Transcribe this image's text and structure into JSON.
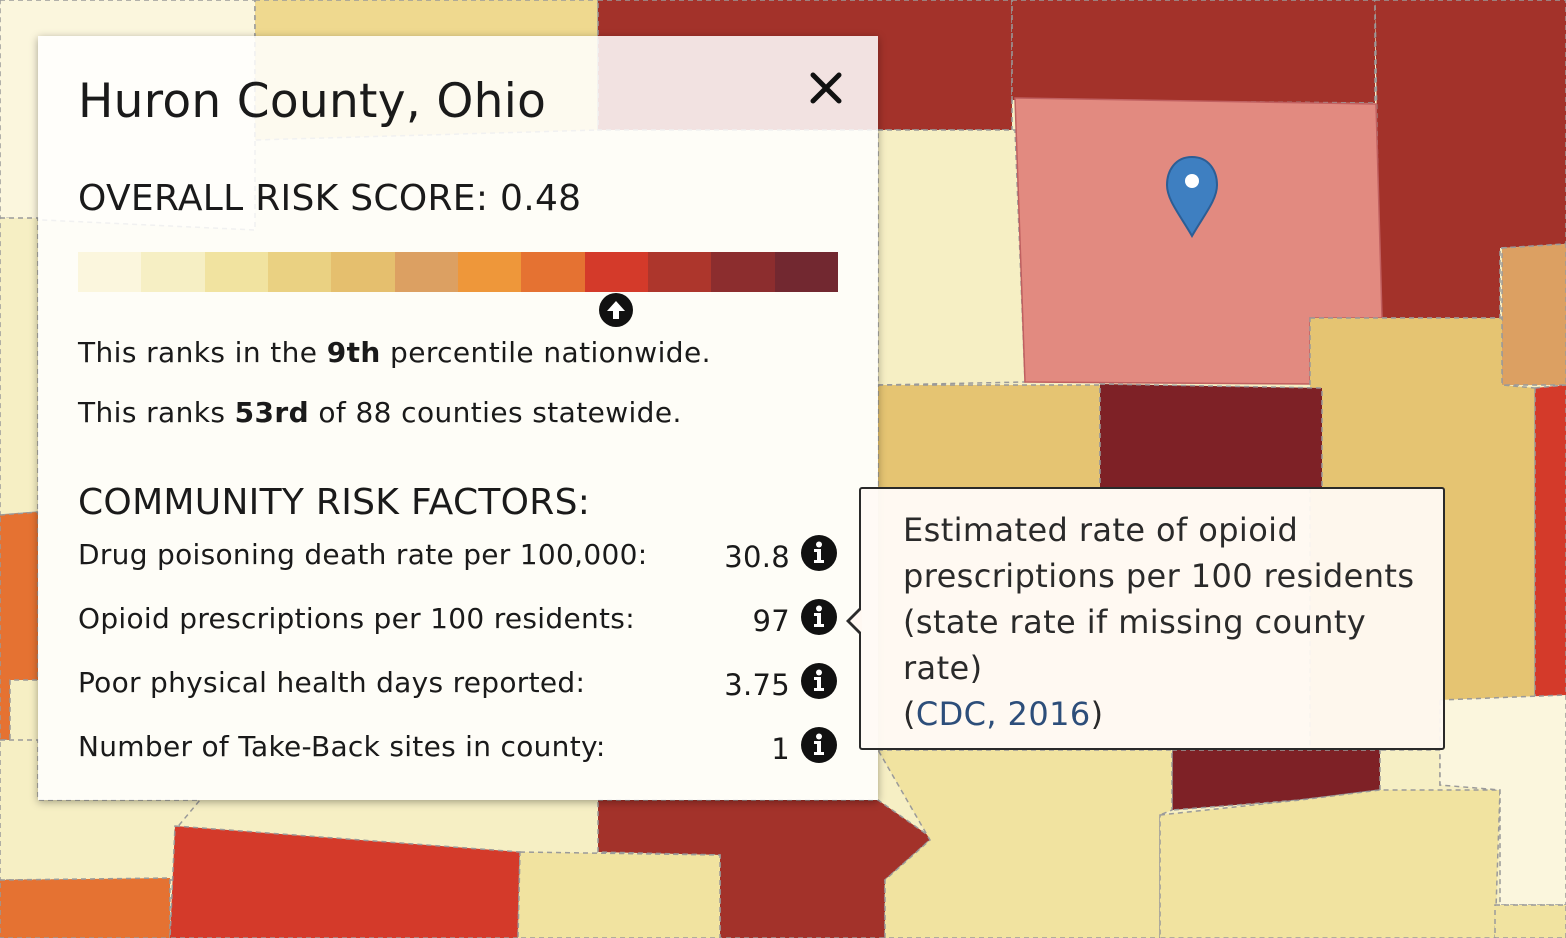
{
  "county_title": "Huron County, Ohio",
  "overall_risk_score": "OVERALL RISK SCORE: 0.48",
  "score_value": 0.48,
  "scale_colors": [
    "#fbf6dd",
    "#f6efc4",
    "#f1e3a0",
    "#ead182",
    "#e5bf6e",
    "#dca062",
    "#ee973a",
    "#e57232",
    "#d43a2a",
    "#ad362c",
    "#8c2d2e",
    "#722830"
  ],
  "rank_national": {
    "prefix": "This ranks in the ",
    "value": "9th",
    "suffix": " percentile nationwide."
  },
  "rank_state": {
    "prefix": "This ranks ",
    "value": "53rd",
    "suffix": " of 88 counties statewide."
  },
  "factors_heading": "COMMUNITY RISK FACTORS:",
  "factors": [
    {
      "label": "Drug poisoning death rate per 100,000:",
      "value": "30.8"
    },
    {
      "label": "Opioid prescriptions per 100 residents:",
      "value": "97"
    },
    {
      "label": "Poor physical health days reported:",
      "value": "3.75"
    },
    {
      "label": "Number of Take-Back sites in county:",
      "value": "1"
    }
  ],
  "tooltip": {
    "text": "Estimated rate of opioid prescriptions per 100 residents (state rate if missing county rate)",
    "open_paren": "(",
    "link_text": "CDC, 2016",
    "close_paren": ")"
  },
  "icons": {
    "close": "close-icon",
    "info": "info-icon",
    "marker": "arrow-up-circle-icon",
    "pin": "map-pin-icon"
  }
}
